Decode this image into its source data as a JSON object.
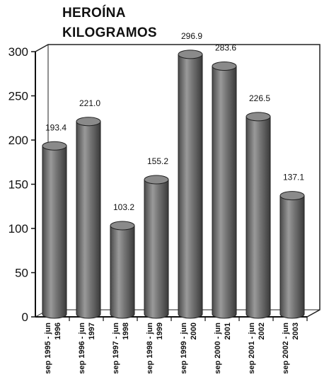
{
  "chart_data": {
    "type": "bar",
    "title_lines": [
      "HEROÍNA",
      "KILOGRAMOS"
    ],
    "categories": [
      [
        "sep 1995 - jun",
        "1996"
      ],
      [
        "sep 1996 - jun",
        "1997"
      ],
      [
        "sep 1997 - jun",
        "1998"
      ],
      [
        "sep 1998 - jun",
        "1999"
      ],
      [
        "sep 1999 - jun",
        "2000"
      ],
      [
        "sep 2000 - jun",
        "2001"
      ],
      [
        "sep 2001 - jun",
        "2002"
      ],
      [
        "sep 2002 - jun",
        "2003"
      ]
    ],
    "values": [
      193.4,
      221.0,
      103.2,
      155.2,
      296.9,
      283.6,
      226.5,
      137.1
    ],
    "value_labels": [
      "193.4",
      "221.0",
      "103.2",
      "155.2",
      "296.9",
      "283.6",
      "226.5",
      "137.1"
    ],
    "yticks": [
      0,
      50,
      100,
      150,
      200,
      250,
      300
    ],
    "ylim": [
      0,
      300
    ],
    "grid": false,
    "legend": "none",
    "style": "3d-cylinder",
    "colors": {
      "bar": "#5a5a5a",
      "bar_highlight": "#a8a8a8",
      "bar_top": "#8a8a8a",
      "text": "#111111"
    }
  }
}
